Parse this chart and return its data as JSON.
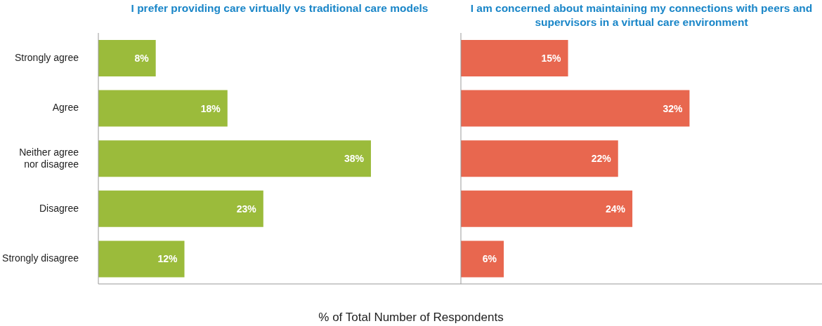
{
  "chart_data": [
    {
      "type": "bar",
      "orientation": "horizontal",
      "title": "I prefer providing care virtually vs traditional care models",
      "xlabel": "% of Total Number of Respondents",
      "categories": [
        "Strongly agree",
        "Agree",
        "Neither agree nor disagree",
        "Disagree",
        "Strongly disagree"
      ],
      "values": [
        8,
        18,
        38,
        23,
        12
      ],
      "value_labels": [
        "8%",
        "18%",
        "38%",
        "23%",
        "12%"
      ],
      "color": "#9bbb3b",
      "tick_labels": "y"
    },
    {
      "type": "bar",
      "orientation": "horizontal",
      "title": "I am concerned about maintaining my connections with peers and supervisors in a virtual care environment",
      "categories": [
        null,
        null,
        null,
        null,
        null
      ],
      "values": [
        15,
        32,
        22,
        24,
        6
      ],
      "value_labels": [
        "15%",
        "32%",
        "22%",
        "24%",
        "6%"
      ],
      "color": "#e8674f",
      "tick_labels": false
    }
  ]
}
